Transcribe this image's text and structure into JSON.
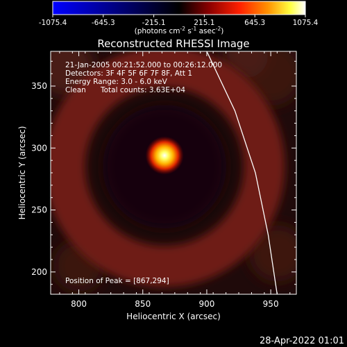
{
  "chart_data": {
    "type": "heatmap",
    "title": "Reconstructed RHESSI Image",
    "xlabel": "Heliocentric X (arcsec)",
    "ylabel": "Heliocentric Y (arcsec)",
    "xlim": [
      778,
      970
    ],
    "ylim": [
      182,
      378
    ],
    "xticks": [
      800,
      850,
      900,
      950
    ],
    "yticks": [
      200,
      250,
      300,
      350
    ],
    "colorbar": {
      "range": [
        -1075.4,
        1075.4
      ],
      "ticks": [
        "-1075.4",
        "-645.3",
        "-215.1",
        "215.1",
        "645.3",
        "1075.4"
      ],
      "label": "(photons cm",
      "label_sup1": "-2",
      "label_mid": " s",
      "label_sup2": "-1",
      "label_end": " asec",
      "label_sup3": "-2",
      "label_close": ")",
      "colors": [
        "#0000ff",
        "#000000",
        "#8b0000",
        "#ff2000",
        "#ff9000",
        "#ffff40",
        "#ffffff"
      ]
    },
    "info_lines": [
      "21-Jan-2005 00:21:52.000 to 00:26:12.000",
      "Detectors: 3F 4F 5F 6F 7F 8F, Att 1",
      "Energy Range: 3.0 - 6.0 keV"
    ],
    "clean_label": "Clean",
    "counts_label": "Total counts: 3.63E+04",
    "peak_label": "Position of Peak = [867,294]",
    "peak": {
      "x": 867,
      "y": 294,
      "value": 1075.4
    },
    "ring": {
      "center_x": 867,
      "center_y": 285,
      "radius": 78,
      "width": 20,
      "value": 380
    },
    "limb": [
      [
        900,
        378
      ],
      [
        922,
        330
      ],
      [
        938,
        280
      ],
      [
        948,
        230
      ],
      [
        955,
        182
      ]
    ],
    "timestamp": "28-Apr-2022 01:01"
  }
}
